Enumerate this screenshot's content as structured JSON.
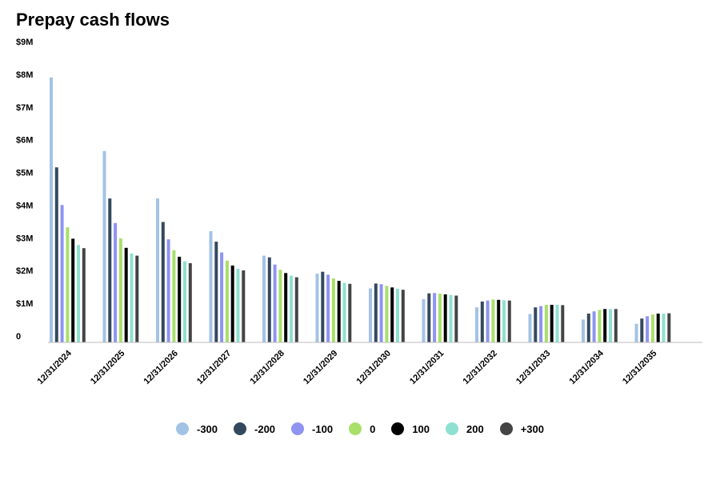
{
  "chart_data": {
    "type": "bar",
    "title": "Prepay cash flows",
    "xlabel": "",
    "ylabel": "",
    "ylim": [
      0,
      9000000
    ],
    "yticks": [
      {
        "value": 0,
        "label": "0"
      },
      {
        "value": 1000000,
        "label": "$1M"
      },
      {
        "value": 2000000,
        "label": "$2M"
      },
      {
        "value": 3000000,
        "label": "$3M"
      },
      {
        "value": 4000000,
        "label": "$4M"
      },
      {
        "value": 5000000,
        "label": "$5M"
      },
      {
        "value": 6000000,
        "label": "$6M"
      },
      {
        "value": 7000000,
        "label": "$7M"
      },
      {
        "value": 8000000,
        "label": "$8M"
      },
      {
        "value": 9000000,
        "label": "$9M"
      }
    ],
    "grid": false,
    "legend_position": "bottom",
    "categories": [
      "12/31/2024",
      "12/31/2025",
      "12/31/2026",
      "12/31/2027",
      "12/31/2028",
      "12/31/2029",
      "12/31/2030",
      "12/31/2031",
      "12/31/2032",
      "12/31/2033",
      "12/31/2034",
      "12/31/2035"
    ],
    "series": [
      {
        "name": "-300",
        "color": "#a3c3e6",
        "values": [
          8100000,
          5850000,
          4400000,
          3400000,
          2650000,
          2100000,
          1650000,
          1320000,
          1070000,
          870000,
          700000,
          570000
        ]
      },
      {
        "name": "-200",
        "color": "#34495e",
        "values": [
          5350000,
          4400000,
          3680000,
          3080000,
          2600000,
          2160000,
          1800000,
          1500000,
          1250000,
          1070000,
          880000,
          730000
        ]
      },
      {
        "name": "-100",
        "color": "#8e94f0",
        "values": [
          4200000,
          3650000,
          3150000,
          2750000,
          2380000,
          2070000,
          1780000,
          1510000,
          1280000,
          1110000,
          950000,
          800000
        ]
      },
      {
        "name": "0",
        "color": "#a8e06a",
        "values": [
          3520000,
          3180000,
          2820000,
          2500000,
          2220000,
          1960000,
          1730000,
          1490000,
          1310000,
          1150000,
          990000,
          850000
        ]
      },
      {
        "name": "100",
        "color": "#000000",
        "values": [
          3170000,
          2890000,
          2620000,
          2350000,
          2120000,
          1880000,
          1680000,
          1470000,
          1300000,
          1150000,
          1020000,
          880000
        ]
      },
      {
        "name": "200",
        "color": "#8ee0d0",
        "values": [
          2980000,
          2720000,
          2480000,
          2250000,
          2040000,
          1820000,
          1640000,
          1450000,
          1290000,
          1150000,
          1020000,
          880000
        ]
      },
      {
        "name": "+300",
        "color": "#444444",
        "values": [
          2880000,
          2650000,
          2420000,
          2200000,
          1990000,
          1790000,
          1610000,
          1430000,
          1280000,
          1140000,
          1020000,
          890000
        ]
      }
    ]
  }
}
